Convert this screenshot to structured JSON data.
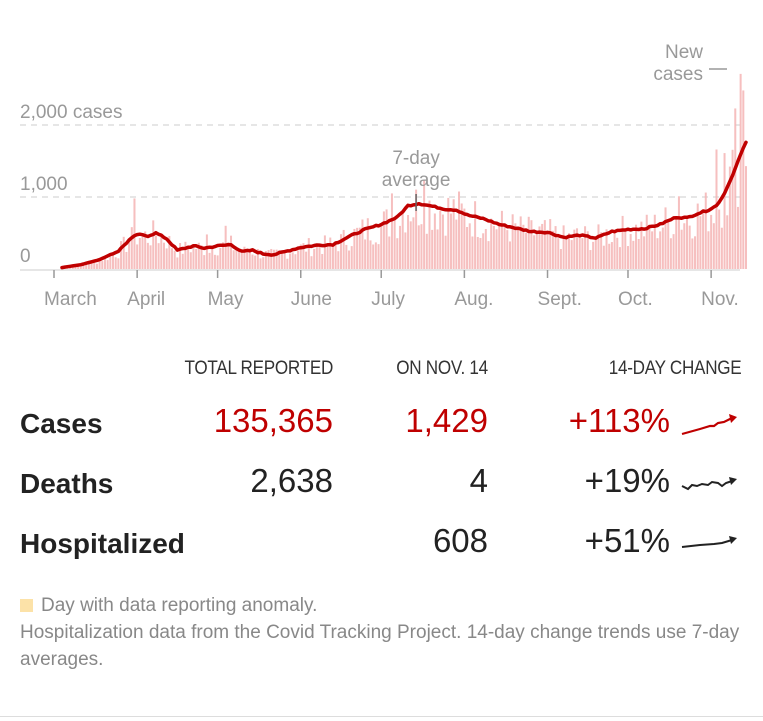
{
  "chart_data": {
    "type": "bar+line",
    "title": "",
    "xlabel": "",
    "ylabel": "cases",
    "ylim": [
      0,
      2700
    ],
    "grid": true,
    "y_ticks": [
      {
        "value": 0,
        "label": "0"
      },
      {
        "value": 1000,
        "label": "1,000"
      },
      {
        "value": 2000,
        "label": "2,000 cases"
      }
    ],
    "x_ticks": [
      {
        "day": 0,
        "label": "March"
      },
      {
        "day": 31,
        "label": "April"
      },
      {
        "day": 61,
        "label": "May"
      },
      {
        "day": 92,
        "label": "June"
      },
      {
        "day": 122,
        "label": "July"
      },
      {
        "day": 153,
        "label": "Aug."
      },
      {
        "day": 184,
        "label": "Sept."
      },
      {
        "day": 214,
        "label": "Oct."
      },
      {
        "day": 245,
        "label": "Nov."
      }
    ],
    "x_range_days": [
      0,
      258
    ],
    "first_day": 3,
    "last_day": 258,
    "annotations": [
      {
        "text": [
          "7-day",
          "average"
        ],
        "day": 135,
        "value": 830
      },
      {
        "text": [
          "New",
          "cases"
        ],
        "day": 256,
        "value": 2700
      }
    ],
    "series": [
      {
        "name": "7-day average",
        "type": "line",
        "color": "#c00000",
        "anchors_day": [
          3,
          10,
          17,
          24,
          28,
          31,
          35,
          38,
          42,
          46,
          52,
          56,
          61,
          66,
          70,
          74,
          78,
          82,
          86,
          92,
          98,
          104,
          110,
          116,
          122,
          128,
          132,
          136,
          140,
          146,
          150,
          154,
          160,
          166,
          172,
          178,
          184,
          190,
          196,
          202,
          208,
          214,
          220,
          226,
          232,
          236,
          240,
          244,
          247,
          250,
          253,
          255,
          257,
          258
        ],
        "anchors_value": [
          20,
          60,
          130,
          250,
          400,
          480,
          460,
          500,
          420,
          260,
          320,
          290,
          320,
          340,
          240,
          260,
          210,
          200,
          240,
          300,
          330,
          340,
          450,
          550,
          620,
          720,
          880,
          910,
          880,
          830,
          820,
          750,
          700,
          620,
          570,
          520,
          510,
          440,
          470,
          430,
          520,
          550,
          560,
          620,
          720,
          710,
          770,
          820,
          880,
          1050,
          1300,
          1500,
          1680,
          1760
        ]
      },
      {
        "name": "New cases",
        "type": "bar",
        "color": "#f4b4b4",
        "note": "daily values approximated around 7-day average; notable spikes",
        "spikes": [
          {
            "day": 30,
            "value": 980
          },
          {
            "day": 57,
            "value": 480
          },
          {
            "day": 64,
            "value": 600
          },
          {
            "day": 126,
            "value": 1050
          },
          {
            "day": 138,
            "value": 1230
          },
          {
            "day": 233,
            "value": 1010
          },
          {
            "day": 247,
            "value": 1660
          },
          {
            "day": 250,
            "value": 1610
          },
          {
            "day": 254,
            "value": 2230
          },
          {
            "day": 256,
            "value": 2710
          },
          {
            "day": 257,
            "value": 2480
          },
          {
            "day": 258,
            "value": 1429
          }
        ]
      }
    ]
  },
  "table": {
    "headers": {
      "total": "TOTAL REPORTED",
      "day": "ON NOV. 14",
      "change": "14-DAY CHANGE"
    },
    "rows": [
      {
        "label": "Cases",
        "total": "135,365",
        "day": "1,429",
        "change": "+113%",
        "color": "#bf0000",
        "trend": "up-steep"
      },
      {
        "label": "Deaths",
        "total": "2,638",
        "day": "4",
        "change": "+19%",
        "color": "#222222",
        "trend": "up-wavy"
      },
      {
        "label": "Hospitalized",
        "total": "",
        "day": "608",
        "change": "+51%",
        "color": "#222222",
        "trend": "up-gentle"
      }
    ]
  },
  "footer": {
    "legend": "Day with data reporting anomaly.",
    "legend_color": "#fce2a8",
    "note": "Hospitalization data from the Covid Tracking Project. 14-day change trends use 7-day averages."
  }
}
